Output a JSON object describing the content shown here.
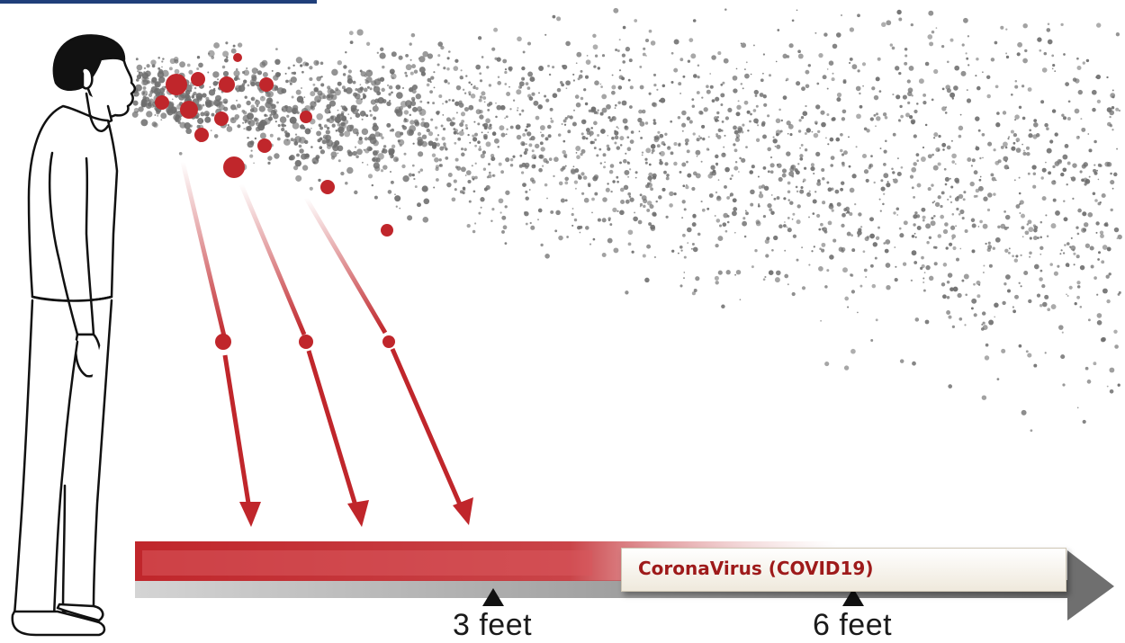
{
  "diagram": {
    "distance_marks": [
      {
        "label": "3 feet",
        "feet": 3
      },
      {
        "label": "6 feet",
        "feet": 6
      }
    ],
    "callout_label": "CoronaVirus (COVID19)",
    "colors": {
      "large_droplet": "#c0262b",
      "aerosol_particle": "#6e6e6e",
      "arrow": "#c0262b",
      "bar_red": "#c0393d",
      "bar_gray": "#8f8f8f",
      "callout_text": "#9e1a1a",
      "top_rule": "#1f3f7a"
    },
    "icons": [
      "person-coughing-icon",
      "falling-droplet-arrow-icon",
      "distance-arrow-icon",
      "marker-triangle-icon"
    ]
  }
}
